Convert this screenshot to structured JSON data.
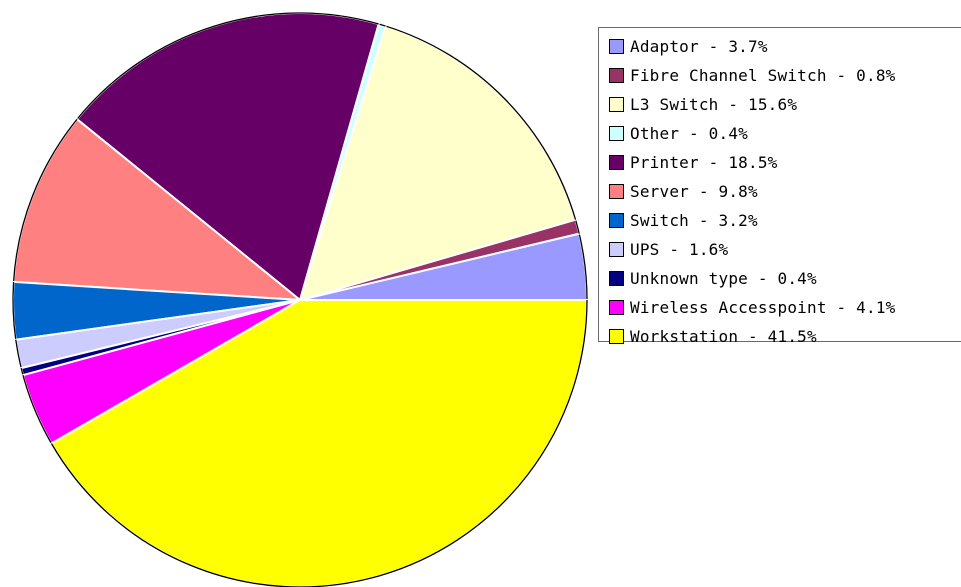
{
  "chart_data": {
    "type": "pie",
    "title": "",
    "legend_position": "right",
    "slices": [
      {
        "label": "Adaptor",
        "value": 3.7,
        "legend_text": "Adaptor - 3.7%",
        "color": "#9999ff"
      },
      {
        "label": "Fibre Channel Switch",
        "value": 0.8,
        "legend_text": "Fibre Channel Switch - 0.8%",
        "color": "#993366"
      },
      {
        "label": "L3 Switch",
        "value": 15.6,
        "legend_text": "L3 Switch - 15.6%",
        "color": "#ffffcc"
      },
      {
        "label": "Other",
        "value": 0.4,
        "legend_text": "Other - 0.4%",
        "color": "#ccffff"
      },
      {
        "label": "Printer",
        "value": 18.5,
        "legend_text": "Printer - 18.5%",
        "color": "#660066"
      },
      {
        "label": "Server",
        "value": 9.8,
        "legend_text": "Server - 9.8%",
        "color": "#ff8080"
      },
      {
        "label": "Switch",
        "value": 3.2,
        "legend_text": "Switch - 3.2%",
        "color": "#0066cc"
      },
      {
        "label": "UPS",
        "value": 1.6,
        "legend_text": "UPS - 1.6%",
        "color": "#ccccff"
      },
      {
        "label": "Unknown type",
        "value": 0.4,
        "legend_text": "Unknown type - 0.4%",
        "color": "#000080"
      },
      {
        "label": "Wireless Accesspoint",
        "value": 4.1,
        "legend_text": "Wireless Accesspoint - 4.1%",
        "color": "#ff00ff"
      },
      {
        "label": "Workstation",
        "value": 41.5,
        "legend_text": "Workstation - 41.5%",
        "color": "#ffff00"
      }
    ]
  }
}
